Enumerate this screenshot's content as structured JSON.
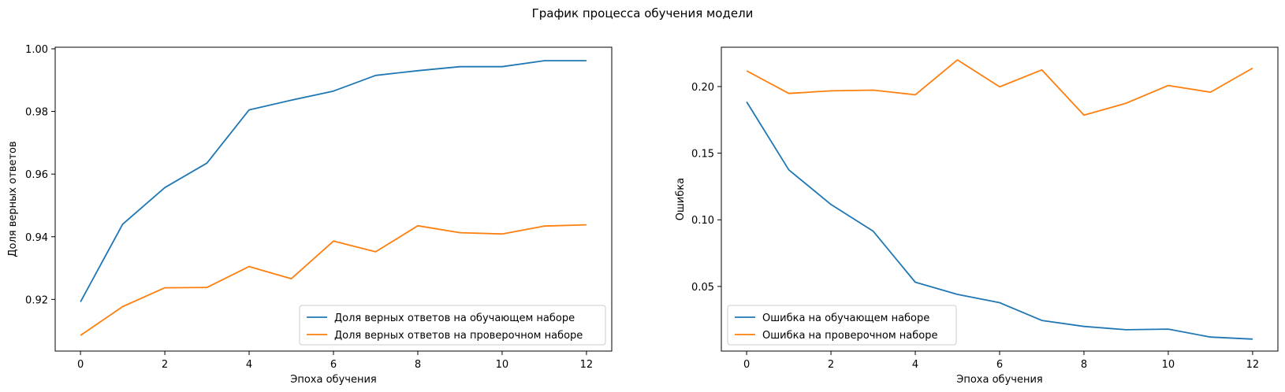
{
  "suptitle": "График процесса обучения модели",
  "chart_data": [
    {
      "type": "line",
      "xlabel": "Эпоха обучения",
      "ylabel": "Доля верных ответов",
      "xlim": [
        -0.6,
        12.6
      ],
      "ylim": [
        0.9035,
        1.0005
      ],
      "xticks": [
        0,
        2,
        4,
        6,
        8,
        10,
        12
      ],
      "yticks": [
        0.92,
        0.94,
        0.96,
        0.98,
        1.0
      ],
      "ytick_labels": [
        "0.92",
        "0.94",
        "0.96",
        "0.98",
        "1.00"
      ],
      "legend_position": "lower-right",
      "x": [
        0,
        1,
        2,
        3,
        4,
        5,
        6,
        7,
        8,
        9,
        10,
        11,
        12
      ],
      "series": [
        {
          "name": "Доля верных ответов на обучающем наборе",
          "color": "#1f77b4",
          "values": [
            0.9192,
            0.944,
            0.9557,
            0.9635,
            0.9805,
            0.9836,
            0.9865,
            0.9915,
            0.993,
            0.9943,
            0.9943,
            0.9962,
            0.9962
          ]
        },
        {
          "name": "Доля верных ответов на проверочном наборе",
          "color": "#ff7f0e",
          "values": [
            0.9085,
            0.9177,
            0.9237,
            0.9238,
            0.9305,
            0.9266,
            0.9386,
            0.9352,
            0.9435,
            0.9413,
            0.9409,
            0.9434,
            0.9438
          ]
        }
      ]
    },
    {
      "type": "line",
      "xlabel": "Эпоха обучения",
      "ylabel": "Ошибка",
      "xlim": [
        -0.6,
        12.6
      ],
      "ylim": [
        0.0015,
        0.2295
      ],
      "xticks": [
        0,
        2,
        4,
        6,
        8,
        10,
        12
      ],
      "yticks": [
        0.05,
        0.1,
        0.15,
        0.2
      ],
      "ytick_labels": [
        "0.05",
        "0.10",
        "0.15",
        "0.20"
      ],
      "legend_position": "lower-left",
      "x": [
        0,
        1,
        2,
        3,
        4,
        5,
        6,
        7,
        8,
        9,
        10,
        11,
        12
      ],
      "series": [
        {
          "name": "Ошибка на обучающем наборе",
          "color": "#1f77b4",
          "values": [
            0.1885,
            0.1375,
            0.1115,
            0.0915,
            0.0532,
            0.044,
            0.0378,
            0.0245,
            0.02,
            0.0175,
            0.018,
            0.012,
            0.0105
          ]
        },
        {
          "name": "Ошибка на проверочном наборе",
          "color": "#ff7f0e",
          "values": [
            0.2118,
            0.1948,
            0.1968,
            0.1973,
            0.1938,
            0.22,
            0.1998,
            0.2125,
            0.1785,
            0.1875,
            0.2008,
            0.1958,
            0.2138
          ]
        }
      ]
    }
  ]
}
